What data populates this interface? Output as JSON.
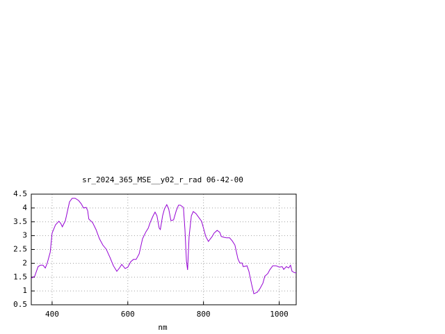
{
  "chart_data": {
    "type": "line",
    "title": "sr_2024_365_MSE__y02_r_rad 06-42-00",
    "x_label": "nm",
    "x": [
      345,
      354,
      363,
      369,
      376,
      382,
      387,
      395,
      400,
      409,
      418,
      423,
      427,
      435,
      440,
      446,
      453,
      461,
      470,
      477,
      483,
      490,
      494,
      497,
      507,
      516,
      525,
      534,
      543,
      553,
      562,
      571,
      578,
      584,
      593,
      600,
      608,
      615,
      622,
      630,
      639,
      648,
      654,
      659,
      667,
      672,
      677,
      683,
      686,
      692,
      697,
      703,
      708,
      714,
      721,
      728,
      734,
      739,
      747,
      751,
      755,
      758,
      762,
      768,
      773,
      780,
      788,
      795,
      801,
      806,
      813,
      823,
      828,
      836,
      843,
      847,
      854,
      861,
      869,
      876,
      883,
      891,
      896,
      902,
      905,
      915,
      920,
      927,
      933,
      942,
      949,
      957,
      962,
      970,
      975,
      983,
      992,
      1001,
      1008,
      1012,
      1019,
      1025,
      1030,
      1034,
      1041,
      1045
    ],
    "series": [
      {
        "color": "#9400d3",
        "values": [
          1.46,
          1.53,
          1.88,
          1.93,
          1.93,
          1.83,
          2.0,
          2.4,
          3.09,
          3.39,
          3.52,
          3.44,
          3.32,
          3.54,
          3.85,
          4.22,
          4.35,
          4.35,
          4.27,
          4.15,
          4.0,
          4.02,
          3.9,
          3.6,
          3.47,
          3.22,
          2.89,
          2.66,
          2.51,
          2.21,
          1.91,
          1.71,
          1.83,
          1.96,
          1.81,
          1.86,
          2.06,
          2.14,
          2.14,
          2.34,
          2.89,
          3.14,
          3.27,
          3.47,
          3.72,
          3.85,
          3.72,
          3.27,
          3.22,
          3.72,
          3.97,
          4.12,
          3.97,
          3.54,
          3.57,
          3.9,
          4.1,
          4.1,
          4.02,
          3.22,
          2.08,
          1.76,
          2.97,
          3.72,
          3.87,
          3.8,
          3.65,
          3.52,
          3.22,
          2.97,
          2.79,
          2.97,
          3.09,
          3.19,
          3.12,
          2.97,
          2.94,
          2.92,
          2.92,
          2.81,
          2.66,
          2.16,
          2.01,
          2.01,
          1.88,
          1.91,
          1.71,
          1.25,
          0.9,
          0.95,
          1.08,
          1.28,
          1.53,
          1.63,
          1.76,
          1.91,
          1.91,
          1.86,
          1.88,
          1.78,
          1.88,
          1.83,
          1.93,
          1.71,
          1.66,
          1.66
        ]
      }
    ],
    "xlim": [
      345,
      1045
    ],
    "xticks": [
      400,
      600,
      800,
      1000
    ],
    "ylim": [
      0.5,
      4.5
    ],
    "yticks": [
      0.5,
      1,
      1.5,
      2,
      2.5,
      3,
      3.5,
      4,
      4.5
    ],
    "grid": true
  }
}
